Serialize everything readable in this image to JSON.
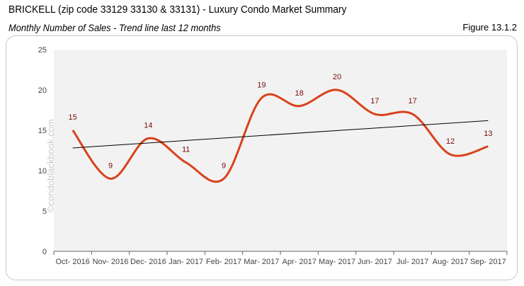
{
  "header": {
    "title": "BRICKELL (zip code 33129 33130 & 33131) - Luxury Condo Market Summary",
    "subtitle": "Monthly Number of Sales - Trend line last 12 months",
    "figure": "Figure 13.1.2"
  },
  "watermark": "©condoblackbook.com",
  "chart_data": {
    "type": "line",
    "title": "",
    "categories": [
      "Oct- 2016",
      "Nov- 2016",
      "Dec- 2016",
      "Jan- 2017",
      "Feb- 2017",
      "Mar- 2017",
      "Apr- 2017",
      "May- 2017",
      "Jun- 2017",
      "Jul- 2017",
      "Aug- 2017",
      "Sep- 2017"
    ],
    "series": [
      {
        "values": [
          15,
          9,
          14,
          11,
          9,
          19,
          18,
          20,
          17,
          17,
          12,
          13
        ],
        "color": "#d9421b",
        "smooth": true,
        "data_labels": true
      }
    ],
    "trendline": {
      "type": "linear",
      "color": "#000000"
    },
    "ylim": [
      0,
      25
    ],
    "yticks": [
      0,
      5,
      10,
      15,
      20,
      25
    ],
    "grid": false,
    "plot_background": "#f2f2f2",
    "label_color": "#7a0c0c"
  }
}
